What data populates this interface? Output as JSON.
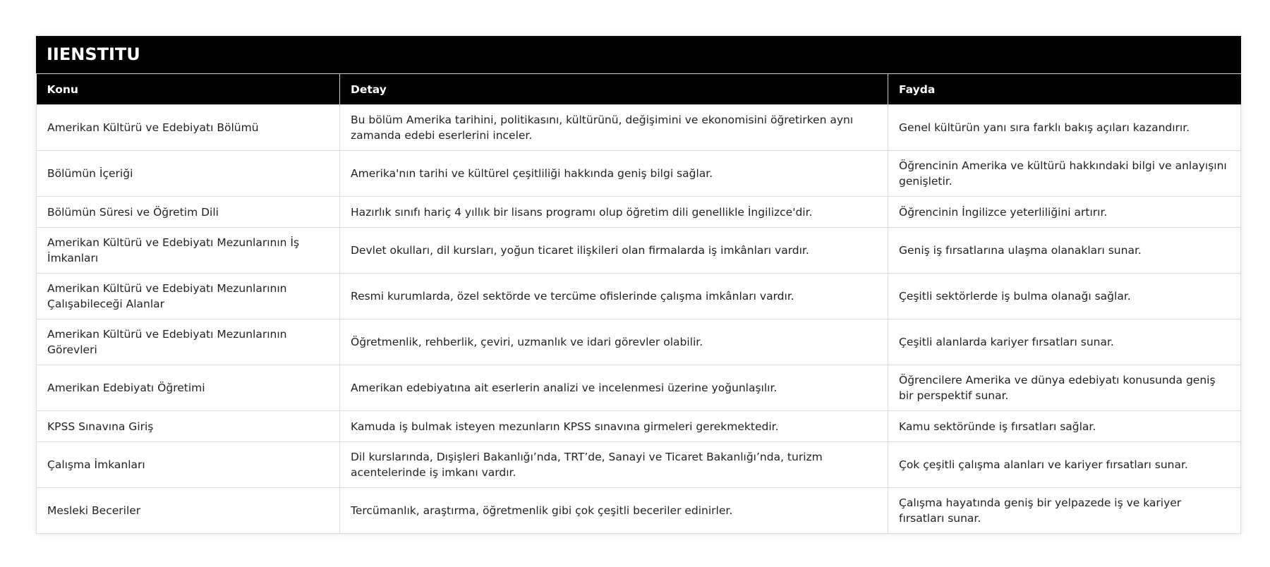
{
  "title": "IIENSTITU",
  "columns": [
    "Konu",
    "Detay",
    "Fayda"
  ],
  "rows": [
    [
      "Amerikan Kültürü ve Edebiyatı Bölümü",
      "Bu bölüm Amerika tarihini, politikasını, kültürünü, değişimini ve ekonomisini öğretirken aynı zamanda edebi eserlerini inceler.",
      "Genel kültürün yanı sıra farklı bakış açıları kazandırır."
    ],
    [
      "Bölümün İçeriği",
      "Amerika'nın tarihi ve kültürel çeşitliliği hakkında geniş bilgi sağlar.",
      "Öğrencinin Amerika ve kültürü hakkındaki bilgi ve anlayışını genişletir."
    ],
    [
      "Bölümün Süresi ve Öğretim Dili",
      "Hazırlık sınıfı hariç 4 yıllık bir lisans programı olup öğretim dili genellikle İngilizce'dir.",
      "Öğrencinin İngilizce yeterliliğini artırır."
    ],
    [
      "Amerikan Kültürü ve Edebiyatı Mezunlarının İş İmkanları",
      "Devlet okulları, dil kursları, yoğun ticaret ilişkileri olan firmalarda iş imkânları vardır.",
      "Geniş iş fırsatlarına ulaşma olanakları sunar."
    ],
    [
      "Amerikan Kültürü ve Edebiyatı Mezunlarının Çalışabileceği Alanlar",
      "Resmi kurumlarda, özel sektörde ve tercüme ofislerinde çalışma imkânları vardır.",
      "Çeşitli sektörlerde iş bulma olanağı sağlar."
    ],
    [
      "Amerikan Kültürü ve Edebiyatı Mezunlarının Görevleri",
      "Öğretmenlik, rehberlik, çeviri, uzmanlık ve idari görevler olabilir.",
      "Çeşitli alanlarda kariyer fırsatları sunar."
    ],
    [
      "Amerikan Edebiyatı Öğretimi",
      "Amerikan edebiyatına ait eserlerin analizi ve incelenmesi üzerine yoğunlaşılır.",
      "Öğrencilere Amerika ve dünya edebiyatı konusunda geniş bir perspektif sunar."
    ],
    [
      "KPSS Sınavına Giriş",
      "Kamuda iş bulmak isteyen mezunların KPSS sınavına girmeleri gerekmektedir.",
      "Kamu sektöründe iş fırsatları sağlar."
    ],
    [
      "Çalışma İmkanları",
      "Dil kurslarında, Dışişleri Bakanlığı’nda, TRT’de, Sanayi ve Ticaret Bakanlığı’nda, turizm acentelerinde iş imkanı vardır.",
      "Çok çeşitli çalışma alanları ve kariyer fırsatları sunar."
    ],
    [
      "Mesleki Beceriler",
      "Tercümanlık, araştırma, öğretmenlik gibi çok çeşitli beceriler edinirler.",
      "Çalışma hayatında geniş bir yelpazede iş ve kariyer fırsatları sunar."
    ]
  ]
}
